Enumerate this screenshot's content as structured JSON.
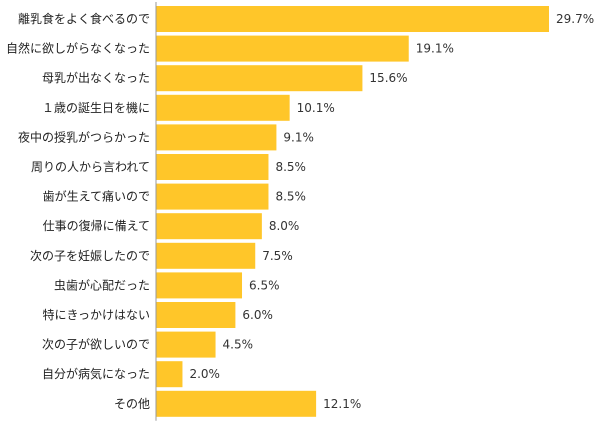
{
  "chart_data": {
    "type": "bar",
    "orientation": "horizontal",
    "categories": [
      "離乳食をよく食べるので",
      "自然に欲しがらなくなった",
      "母乳が出なくなった",
      "１歳の誕生日を機に",
      "夜中の授乳がつらかった",
      "周りの人から言われて",
      "歯が生えて痛いので",
      "仕事の復帰に備えて",
      "次の子を妊娠したので",
      "虫歯が心配だった",
      "特にきっかけはない",
      "次の子が欲しいので",
      "自分が病気になった",
      "その他"
    ],
    "values": [
      29.7,
      19.1,
      15.6,
      10.1,
      9.1,
      8.5,
      8.5,
      8.0,
      7.5,
      6.5,
      6.0,
      4.5,
      2.0,
      12.1
    ],
    "value_labels": [
      "29.7%",
      "19.1%",
      "15.6%",
      "10.1%",
      "9.1%",
      "8.5%",
      "8.5%",
      "8.0%",
      "7.5%",
      "6.5%",
      "6.0%",
      "4.5%",
      "2.0%",
      "12.1%"
    ],
    "unit": "%",
    "title": "",
    "xlabel": "",
    "ylabel": "",
    "xlim": [
      0,
      29.7
    ],
    "grid": false,
    "legend": "none",
    "colors": {
      "bar": "#FFC629",
      "axis": "#999999",
      "label_text": "#222222",
      "value_text": "#333333",
      "background": "#ffffff"
    }
  }
}
